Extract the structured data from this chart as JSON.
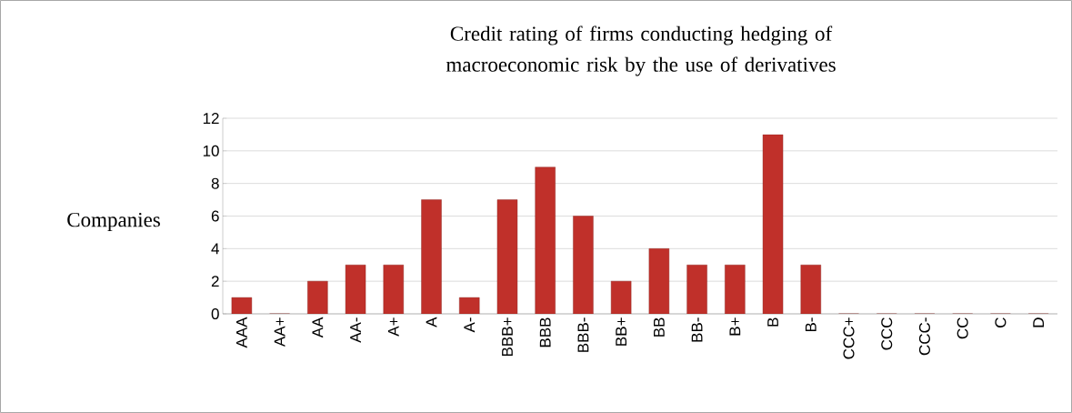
{
  "chart_data": {
    "type": "bar",
    "title": "Credit rating of firms conducting hedging of macroeconomic risk by the use of derivatives",
    "ylabel": "Companies",
    "categories": [
      "AAA",
      "AA+",
      "AA",
      "AA-",
      "A+",
      "A",
      "A-",
      "BBB+",
      "BBB",
      "BBB-",
      "BB+",
      "BB",
      "BB-",
      "B+",
      "B",
      "B-",
      "CCC+",
      "CCC",
      "CCC-",
      "CC",
      "C",
      "D"
    ],
    "values": [
      1,
      0,
      2,
      3,
      3,
      7,
      1,
      7,
      9,
      6,
      2,
      4,
      3,
      3,
      11,
      3,
      0,
      0,
      0,
      0,
      0,
      0
    ],
    "color": "#c0302a",
    "ylim": [
      0,
      12
    ],
    "yticks": [
      0,
      2,
      4,
      6,
      8,
      10,
      12
    ],
    "grid": "y"
  }
}
